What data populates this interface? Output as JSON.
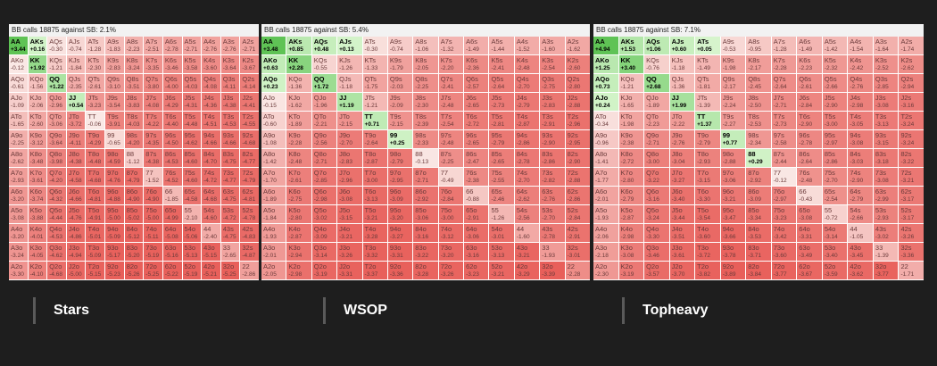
{
  "hands": [
    [
      "AA",
      "AKs",
      "AQs",
      "AJs",
      "ATs",
      "A9s",
      "A8s",
      "A7s",
      "A6s",
      "A5s",
      "A4s",
      "A3s",
      "A2s"
    ],
    [
      "AKo",
      "KK",
      "KQs",
      "KJs",
      "KTs",
      "K9s",
      "K8s",
      "K7s",
      "K6s",
      "K5s",
      "K4s",
      "K3s",
      "K2s"
    ],
    [
      "AQo",
      "KQo",
      "QQ",
      "QJs",
      "QTs",
      "Q9s",
      "Q8s",
      "Q7s",
      "Q6s",
      "Q5s",
      "Q4s",
      "Q3s",
      "Q2s"
    ],
    [
      "AJo",
      "KJo",
      "QJo",
      "JJ",
      "JTs",
      "J9s",
      "J8s",
      "J7s",
      "J6s",
      "J5s",
      "J4s",
      "J3s",
      "J2s"
    ],
    [
      "ATo",
      "KTo",
      "QTo",
      "JTo",
      "TT",
      "T9s",
      "T8s",
      "T7s",
      "T6s",
      "T5s",
      "T4s",
      "T3s",
      "T2s"
    ],
    [
      "A9o",
      "K9o",
      "Q9o",
      "J9o",
      "T9o",
      "99",
      "98s",
      "97s",
      "96s",
      "95s",
      "94s",
      "93s",
      "92s"
    ],
    [
      "A8o",
      "K8o",
      "Q8o",
      "J8o",
      "T8o",
      "98o",
      "88",
      "87s",
      "86s",
      "85s",
      "84s",
      "83s",
      "82s"
    ],
    [
      "A7o",
      "K7o",
      "Q7o",
      "J7o",
      "T7o",
      "97o",
      "87o",
      "77",
      "76s",
      "75s",
      "74s",
      "73s",
      "72s"
    ],
    [
      "A6o",
      "K6o",
      "Q6o",
      "J6o",
      "T6o",
      "96o",
      "86o",
      "76o",
      "66",
      "65s",
      "64s",
      "63s",
      "62s"
    ],
    [
      "A5o",
      "K5o",
      "Q5o",
      "J5o",
      "T5o",
      "95o",
      "85o",
      "75o",
      "65o",
      "55",
      "54s",
      "53s",
      "52s"
    ],
    [
      "A4o",
      "K4o",
      "Q4o",
      "J4o",
      "T4o",
      "94o",
      "84o",
      "74o",
      "64o",
      "54o",
      "44",
      "43s",
      "42s"
    ],
    [
      "A3o",
      "K3o",
      "Q3o",
      "J3o",
      "T3o",
      "93o",
      "83o",
      "73o",
      "63o",
      "53o",
      "43o",
      "33",
      "32s"
    ],
    [
      "A2o",
      "K2o",
      "Q2o",
      "J2o",
      "T2o",
      "92o",
      "82o",
      "72o",
      "62o",
      "52o",
      "42o",
      "32o",
      "22"
    ]
  ],
  "panels": [
    {
      "title": "BB calls 18875 against SB: 2.1%",
      "label": "Stars",
      "ev": [
        [
          "+3.44",
          "+0.16",
          "-0.30",
          "-0.74",
          "-1.28",
          "-1.83",
          "-2.23",
          "-2.51",
          "-2.78",
          "-2.71",
          "-2.76",
          "-2.76",
          "-2.71"
        ],
        [
          "-0.12",
          "+1.92",
          "-1.21",
          "-1.84",
          "-2.30",
          "-2.83",
          "-3.24",
          "-3.35",
          "-3.46",
          "-3.58",
          "-3.60",
          "-3.64",
          "-3.67"
        ],
        [
          "-0.61",
          "-1.56",
          "+1.22",
          "-2.35",
          "-2.61",
          "-3.10",
          "-3.51",
          "-3.80",
          "-4.00",
          "-4.03",
          "-4.08",
          "-4.11",
          "-4.14"
        ],
        [
          "-1.09",
          "-2.06",
          "-2.96",
          "+0.54",
          "-3.23",
          "-3.54",
          "-3.83",
          "-4.08",
          "-4.29",
          "-4.31",
          "-4.36",
          "-4.38",
          "-4.41"
        ],
        [
          "-1.65",
          "-2.60",
          "-3.06",
          "-3.72",
          "-0.06",
          "-3.91",
          "-4.03",
          "-4.22",
          "-4.40",
          "-4.48",
          "-4.51",
          "-4.53",
          "-4.55"
        ],
        [
          "-2.25",
          "-3.12",
          "-3.64",
          "-4.11",
          "-4.29",
          "-0.65",
          "-4.20",
          "-4.35",
          "-4.50",
          "-4.62",
          "-4.66",
          "-4.66",
          "-4.68"
        ],
        [
          "-2.62",
          "-3.48",
          "-3.98",
          "-4.38",
          "-4.48",
          "-4.59",
          "-1.12",
          "-4.38",
          "-4.53",
          "-4.60",
          "-4.70",
          "-4.75",
          "-4.77"
        ],
        [
          "-2.93",
          "-3.61",
          "-4.20",
          "-4.58",
          "-4.68",
          "-4.76",
          "-4.79",
          "-1.52",
          "-4.52",
          "-4.60",
          "-4.72",
          "-4.77",
          "-4.79"
        ],
        [
          "-3.20",
          "-3.74",
          "-4.32",
          "-4.66",
          "-4.81",
          "-4.88",
          "-4.90",
          "-4.90",
          "-1.85",
          "-4.58",
          "-4.68",
          "-4.75",
          "-4.81"
        ],
        [
          "-3.08",
          "-3.88",
          "-4.44",
          "-4.76",
          "-4.91",
          "-5.00",
          "-5.02",
          "-5.00",
          "-4.99",
          "-2.10",
          "-4.60",
          "-4.72",
          "-4.78"
        ],
        [
          "-3.20",
          "-4.01",
          "-4.53",
          "-4.86",
          "-5.01",
          "-5.09",
          "-5.12",
          "-5.11",
          "-5.08",
          "-5.06",
          "-2.40",
          "-4.75",
          "-4.83"
        ],
        [
          "-3.24",
          "-4.05",
          "-4.62",
          "-4.94",
          "-5.09",
          "-5.17",
          "-5.20",
          "-5.19",
          "-5.16",
          "-5.13",
          "-5.15",
          "-2.65",
          "-4.87"
        ],
        [
          "-3.30",
          "-4.10",
          "-4.68",
          "-5.00",
          "-5.15",
          "-5.23",
          "-5.26",
          "-5.25",
          "-5.22",
          "-5.19",
          "-5.21",
          "-5.25",
          "-2.86"
        ]
      ]
    },
    {
      "title": "BB calls 18875 against SB: 5.4%",
      "label": "WSOP",
      "ev": [
        [
          "+3.48",
          "+0.85",
          "+0.48",
          "+0.13",
          "-0.30",
          "-0.74",
          "-1.06",
          "-1.32",
          "-1.49",
          "-1.44",
          "-1.52",
          "-1.60",
          "-1.62"
        ],
        [
          "+0.63",
          "+2.28",
          "-0.55",
          "-1.26",
          "-1.33",
          "-1.79",
          "-2.05",
          "-2.20",
          "-2.36",
          "-2.41",
          "-2.48",
          "-2.54",
          "-2.60"
        ],
        [
          "+0.23",
          "-1.36",
          "+1.72",
          "-1.18",
          "-1.75",
          "-2.03",
          "-2.25",
          "-2.41",
          "-2.57",
          "-2.64",
          "-2.70",
          "-2.75",
          "-2.80"
        ],
        [
          "-0.15",
          "-1.62",
          "-1.96",
          "+1.19",
          "-1.21",
          "-2.09",
          "-2.30",
          "-2.48",
          "-2.65",
          "-2.73",
          "-2.79",
          "-2.83",
          "-2.88"
        ],
        [
          "-0.60",
          "-1.89",
          "-2.21",
          "-2.15",
          "+0.71",
          "-2.15",
          "-2.39",
          "-2.54",
          "-2.72",
          "-2.81",
          "-2.87",
          "-2.91",
          "-2.96"
        ],
        [
          "-1.08",
          "-2.28",
          "-2.56",
          "-2.70",
          "-2.64",
          "+0.25",
          "-2.33",
          "-2.48",
          "-2.65",
          "-2.79",
          "-2.86",
          "-2.90",
          "-2.95"
        ],
        [
          "-1.42",
          "-2.48",
          "-2.71",
          "-2.83",
          "-2.87",
          "-2.79",
          "-0.13",
          "-2.25",
          "-2.47",
          "-2.65",
          "-2.78",
          "-2.86",
          "-2.90"
        ],
        [
          "-1.70",
          "-2.61",
          "-2.85",
          "-2.96",
          "-3.00",
          "-2.95",
          "-2.71",
          "-0.49",
          "-2.38",
          "-2.55",
          "-2.70",
          "-2.82",
          "-2.88"
        ],
        [
          "-1.89",
          "-2.75",
          "-2.98",
          "-3.08",
          "-3.13",
          "-3.09",
          "-2.92",
          "-2.84",
          "-0.88",
          "-2.46",
          "-2.62",
          "-2.76",
          "-2.86"
        ],
        [
          "-1.84",
          "-2.80",
          "-3.02",
          "-3.15",
          "-3.21",
          "-3.20",
          "-3.06",
          "-3.00",
          "-2.91",
          "-1.26",
          "-2.56",
          "-2.70",
          "-2.84"
        ],
        [
          "-1.93",
          "-2.87",
          "-3.09",
          "-3.21",
          "-3.28",
          "-3.27",
          "-3.16",
          "-3.12",
          "-3.06",
          "-3.01",
          "-1.60",
          "-2.78",
          "-2.91"
        ],
        [
          "-2.01",
          "-2.94",
          "-3.14",
          "-3.26",
          "-3.32",
          "-3.31",
          "-3.22",
          "-3.20",
          "-3.16",
          "-3.13",
          "-3.21",
          "-1.93",
          "-3.01"
        ],
        [
          "-2.05",
          "-2.98",
          "-3.19",
          "-3.31",
          "-3.37",
          "-3.36",
          "-3.28",
          "-3.26",
          "-3.23",
          "-3.21",
          "-3.29",
          "-3.39",
          "-2.28"
        ]
      ]
    },
    {
      "title": "BB calls 18875 against SB: 7.1%",
      "label": "Topheavy",
      "ev": [
        [
          "+4.94",
          "+1.53",
          "+1.06",
          "+0.60",
          "+0.05",
          "-0.53",
          "-0.95",
          "-1.28",
          "-1.49",
          "-1.42",
          "-1.54",
          "-1.64",
          "-1.74"
        ],
        [
          "+1.25",
          "+3.40",
          "-0.76",
          "-1.18",
          "-1.49",
          "-1.98",
          "-2.17",
          "-2.28",
          "-2.23",
          "-2.32",
          "-2.42",
          "-2.52",
          "-2.62"
        ],
        [
          "+0.73",
          "-1.21",
          "+2.68",
          "-1.36",
          "-1.81",
          "-2.17",
          "-2.45",
          "-2.64",
          "-2.61",
          "-2.66",
          "-2.76",
          "-2.85",
          "-2.94"
        ],
        [
          "+0.24",
          "-1.65",
          "-1.89",
          "+1.99",
          "-1.39",
          "-2.24",
          "-2.50",
          "-2.71",
          "-2.84",
          "-2.90",
          "-2.98",
          "-3.08",
          "-3.16"
        ],
        [
          "-0.34",
          "-1.98",
          "-2.23",
          "-2.22",
          "+1.37",
          "-2.27",
          "-2.53",
          "-2.73",
          "-2.90",
          "-3.00",
          "-3.05",
          "-3.13",
          "-3.24"
        ],
        [
          "-0.96",
          "-2.38",
          "-2.71",
          "-2.76",
          "-2.79",
          "+0.77",
          "-2.34",
          "-2.58",
          "-2.78",
          "-2.97",
          "-3.08",
          "-3.15",
          "-3.24"
        ],
        [
          "-1.41",
          "-2.72",
          "-3.00",
          "-3.04",
          "-2.93",
          "-2.88",
          "+0.29",
          "-2.44",
          "-2.64",
          "-2.86",
          "-3.03",
          "-3.18",
          "-3.22"
        ],
        [
          "-1.77",
          "-2.80",
          "-3.22",
          "-3.27",
          "-3.15",
          "-3.06",
          "-2.92",
          "-0.12",
          "-2.48",
          "-2.70",
          "-2.90",
          "-3.08",
          "-3.21"
        ],
        [
          "-2.01",
          "-2.79",
          "-3.16",
          "-3.40",
          "-3.30",
          "-3.21",
          "-3.09",
          "-2.97",
          "-0.43",
          "-2.54",
          "-2.79",
          "-2.99",
          "-3.17"
        ],
        [
          "-1.93",
          "-2.87",
          "-3.24",
          "-3.44",
          "-3.54",
          "-3.47",
          "-3.34",
          "-3.23",
          "-3.08",
          "-0.72",
          "-2.66",
          "-2.93",
          "-3.17"
        ],
        [
          "-2.06",
          "-2.98",
          "-3.30",
          "-3.51",
          "-3.60",
          "-3.66",
          "-3.53",
          "-3.42",
          "-3.31",
          "-3.14",
          "-1.05",
          "-3.02",
          "-3.26"
        ],
        [
          "-2.18",
          "-3.08",
          "-3.46",
          "-3.61",
          "-3.72",
          "-3.78",
          "-3.71",
          "-3.60",
          "-3.49",
          "-3.40",
          "-3.45",
          "-1.39",
          "-3.36"
        ],
        [
          "-2.30",
          "-3.19",
          "-3.57",
          "-3.70",
          "-3.82",
          "-3.89",
          "-3.84",
          "-3.77",
          "-3.67",
          "-3.59",
          "-3.62",
          "-3.77",
          "-1.71"
        ]
      ]
    }
  ]
}
